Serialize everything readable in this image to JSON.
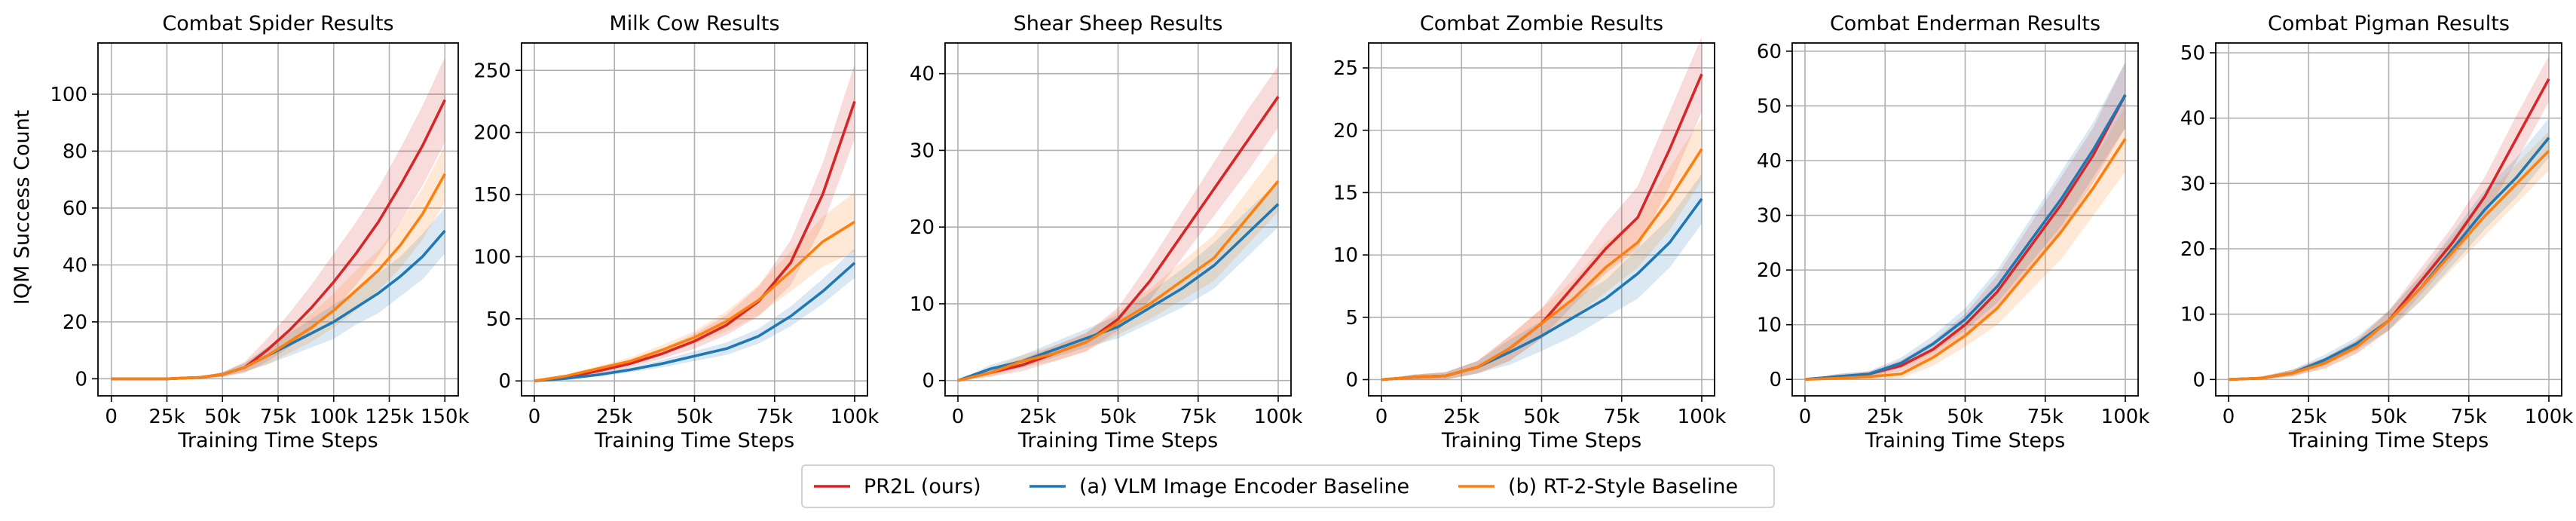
{
  "shared_ylabel": "IQM Success Count",
  "legend": {
    "placement": "bottom-center",
    "entries": [
      {
        "name": "PR2L (ours)",
        "color": "#d62728"
      },
      {
        "name": "(a) VLM Image Encoder Baseline",
        "color": "#1f77b4"
      },
      {
        "name": "(b) RT-2-Style Baseline",
        "color": "#ff7f0e"
      }
    ]
  },
  "chart_data": [
    {
      "type": "line",
      "title": "Combat Spider Results",
      "xlabel": "Training Time Steps",
      "ylabel": "IQM Success Count",
      "grid": true,
      "xlim": [
        -6000,
        156000
      ],
      "ylim": [
        -6,
        118
      ],
      "xticks": [
        0,
        25000,
        50000,
        75000,
        100000,
        125000,
        150000
      ],
      "xtick_labels": [
        "0",
        "25k",
        "50k",
        "75k",
        "100k",
        "125k",
        "150k"
      ],
      "yticks": [
        0,
        20,
        40,
        60,
        80,
        100
      ],
      "ytick_labels": [
        "0",
        "20",
        "40",
        "60",
        "80",
        "100"
      ],
      "series": [
        {
          "name": "PR2L (ours)",
          "color": "#d62728",
          "x": [
            0,
            25000,
            40000,
            50000,
            60000,
            70000,
            80000,
            90000,
            100000,
            110000,
            120000,
            130000,
            140000,
            150000
          ],
          "y": [
            0,
            0,
            0.5,
            1.5,
            4,
            10,
            17,
            25,
            34,
            44,
            55,
            68,
            82,
            98
          ],
          "band": [
            0,
            0,
            0.3,
            0.8,
            2,
            4,
            6,
            8,
            10,
            11,
            12,
            13,
            14,
            15
          ]
        },
        {
          "name": "(a) VLM Image Encoder Baseline",
          "color": "#1f77b4",
          "x": [
            0,
            25000,
            40000,
            50000,
            60000,
            70000,
            80000,
            90000,
            100000,
            110000,
            120000,
            130000,
            140000,
            150000
          ],
          "y": [
            0,
            0,
            0.5,
            1.5,
            4,
            8,
            12,
            16,
            20,
            25,
            30,
            36,
            43,
            52
          ],
          "band": [
            0,
            0,
            0.3,
            0.8,
            1.5,
            3,
            4,
            5,
            6,
            6,
            7,
            7,
            8,
            8
          ]
        },
        {
          "name": "(b) RT-2-Style Baseline",
          "color": "#ff7f0e",
          "x": [
            0,
            25000,
            40000,
            50000,
            60000,
            70000,
            80000,
            90000,
            100000,
            110000,
            120000,
            130000,
            140000,
            150000
          ],
          "y": [
            0,
            0,
            0.5,
            1.5,
            4,
            8,
            13,
            18,
            24,
            31,
            38,
            47,
            58,
            72
          ],
          "band": [
            0,
            0,
            0.3,
            0.8,
            1.5,
            3,
            4,
            5,
            6,
            7,
            7,
            8,
            9,
            10
          ]
        }
      ]
    },
    {
      "type": "line",
      "title": "Milk Cow Results",
      "xlabel": "Training Time Steps",
      "ylabel": "",
      "grid": true,
      "xlim": [
        -4000,
        104000
      ],
      "ylim": [
        -12,
        272
      ],
      "xticks": [
        0,
        25000,
        50000,
        75000,
        100000
      ],
      "xtick_labels": [
        "0",
        "25k",
        "50k",
        "75k",
        "100k"
      ],
      "yticks": [
        0,
        50,
        100,
        150,
        200,
        250
      ],
      "ytick_labels": [
        "0",
        "50",
        "100",
        "150",
        "200",
        "250"
      ],
      "series": [
        {
          "name": "PR2L (ours)",
          "color": "#d62728",
          "x": [
            0,
            10000,
            20000,
            30000,
            40000,
            50000,
            60000,
            70000,
            80000,
            90000,
            100000
          ],
          "y": [
            0,
            3,
            8,
            14,
            22,
            32,
            45,
            64,
            95,
            150,
            225
          ],
          "band": [
            0,
            1,
            2,
            3,
            4,
            6,
            8,
            12,
            18,
            25,
            30
          ]
        },
        {
          "name": "(a) VLM Image Encoder Baseline",
          "color": "#1f77b4",
          "x": [
            0,
            10000,
            20000,
            30000,
            40000,
            50000,
            60000,
            70000,
            80000,
            90000,
            100000
          ],
          "y": [
            0,
            2,
            5,
            9,
            14,
            20,
            26,
            36,
            52,
            72,
            95
          ],
          "band": [
            0,
            1,
            1.5,
            2,
            3,
            4,
            5,
            6,
            8,
            10,
            12
          ]
        },
        {
          "name": "(b) RT-2-Style Baseline",
          "color": "#ff7f0e",
          "x": [
            0,
            10000,
            20000,
            30000,
            40000,
            50000,
            60000,
            70000,
            80000,
            90000,
            100000
          ],
          "y": [
            0,
            4,
            10,
            16,
            25,
            35,
            48,
            65,
            88,
            112,
            128
          ],
          "band": [
            0,
            1,
            2,
            3,
            4,
            5,
            8,
            12,
            16,
            20,
            24
          ]
        }
      ]
    },
    {
      "type": "line",
      "title": "Shear Sheep Results",
      "xlabel": "Training Time Steps",
      "ylabel": "",
      "grid": true,
      "xlim": [
        -4000,
        104000
      ],
      "ylim": [
        -2,
        44
      ],
      "xticks": [
        0,
        25000,
        50000,
        75000,
        100000
      ],
      "xtick_labels": [
        "0",
        "25k",
        "50k",
        "75k",
        "100k"
      ],
      "yticks": [
        0,
        10,
        20,
        30,
        40
      ],
      "ytick_labels": [
        "0",
        "10",
        "20",
        "30",
        "40"
      ],
      "series": [
        {
          "name": "PR2L (ours)",
          "color": "#d62728",
          "x": [
            0,
            10000,
            20000,
            30000,
            40000,
            50000,
            60000,
            70000,
            80000,
            90000,
            100000
          ],
          "y": [
            0,
            1,
            2,
            3.5,
            5,
            8,
            13,
            19,
            25,
            31,
            37
          ],
          "band": [
            0,
            0.5,
            0.8,
            1,
            1.2,
            1.5,
            2.5,
            3,
            3.5,
            4,
            4
          ]
        },
        {
          "name": "(a) VLM Image Encoder Baseline",
          "color": "#1f77b4",
          "x": [
            0,
            10000,
            20000,
            30000,
            40000,
            50000,
            60000,
            70000,
            80000,
            90000,
            100000
          ],
          "y": [
            0,
            1.5,
            2.5,
            4,
            5.5,
            7,
            9.5,
            12,
            15,
            19,
            23
          ],
          "band": [
            0,
            0.5,
            0.8,
            1,
            1.2,
            1.5,
            2,
            2.5,
            3,
            3,
            3
          ]
        },
        {
          "name": "(b) RT-2-Style Baseline",
          "color": "#ff7f0e",
          "x": [
            0,
            10000,
            20000,
            30000,
            40000,
            50000,
            60000,
            70000,
            80000,
            90000,
            100000
          ],
          "y": [
            0,
            1,
            2.5,
            3.5,
            5,
            7.5,
            10,
            13,
            16,
            21,
            26
          ],
          "band": [
            0,
            0.5,
            0.8,
            1,
            1.2,
            1.5,
            2,
            2.5,
            3,
            3.5,
            4
          ]
        }
      ]
    },
    {
      "type": "line",
      "title": "Combat Zombie Results",
      "xlabel": "Training Time Steps",
      "ylabel": "",
      "grid": true,
      "xlim": [
        -4000,
        104000
      ],
      "ylim": [
        -1.3,
        27
      ],
      "xticks": [
        0,
        25000,
        50000,
        75000,
        100000
      ],
      "xtick_labels": [
        "0",
        "25k",
        "50k",
        "75k",
        "100k"
      ],
      "yticks": [
        0,
        5,
        10,
        15,
        20,
        25
      ],
      "ytick_labels": [
        "0",
        "5",
        "10",
        "15",
        "20",
        "25"
      ],
      "series": [
        {
          "name": "PR2L (ours)",
          "color": "#d62728",
          "x": [
            0,
            10000,
            20000,
            30000,
            40000,
            50000,
            60000,
            70000,
            80000,
            90000,
            100000
          ],
          "y": [
            0,
            0.2,
            0.3,
            1,
            2.5,
            4.5,
            7.5,
            10.5,
            13,
            18.5,
            24.5
          ],
          "band": [
            0,
            0.2,
            0.3,
            0.5,
            1,
            1.2,
            1.5,
            2,
            2.5,
            3,
            3
          ]
        },
        {
          "name": "(a) VLM Image Encoder Baseline",
          "color": "#1f77b4",
          "x": [
            0,
            10000,
            20000,
            30000,
            40000,
            50000,
            60000,
            70000,
            80000,
            90000,
            100000
          ],
          "y": [
            0,
            0.2,
            0.3,
            1,
            2.2,
            3.5,
            5,
            6.5,
            8.5,
            11,
            14.5
          ],
          "band": [
            0,
            0.2,
            0.3,
            0.5,
            1,
            1.2,
            1.5,
            1.5,
            2,
            2,
            2
          ]
        },
        {
          "name": "(b) RT-2-Style Baseline",
          "color": "#ff7f0e",
          "x": [
            0,
            10000,
            20000,
            30000,
            40000,
            50000,
            60000,
            70000,
            80000,
            90000,
            100000
          ],
          "y": [
            0,
            0.2,
            0.3,
            1,
            2.5,
            4.5,
            6.5,
            9,
            11,
            14.5,
            18.5
          ],
          "band": [
            0,
            0.2,
            0.3,
            0.5,
            1,
            1.2,
            1.5,
            2,
            2,
            2.5,
            2.5
          ]
        }
      ]
    },
    {
      "type": "line",
      "title": "Combat Enderman Results",
      "xlabel": "Training Time Steps",
      "ylabel": "",
      "grid": true,
      "xlim": [
        -4000,
        104000
      ],
      "ylim": [
        -3,
        61.5
      ],
      "xticks": [
        0,
        25000,
        50000,
        75000,
        100000
      ],
      "xtick_labels": [
        "0",
        "25k",
        "50k",
        "75k",
        "100k"
      ],
      "yticks": [
        0,
        10,
        20,
        30,
        40,
        50,
        60
      ],
      "ytick_labels": [
        "0",
        "10",
        "20",
        "30",
        "40",
        "50",
        "60"
      ],
      "series": [
        {
          "name": "PR2L (ours)",
          "color": "#d62728",
          "x": [
            0,
            10000,
            20000,
            30000,
            40000,
            50000,
            60000,
            70000,
            80000,
            90000,
            100000
          ],
          "y": [
            0,
            0.5,
            1,
            2.5,
            5.5,
            10,
            16,
            24,
            32,
            41,
            52
          ],
          "band": [
            0,
            0.5,
            0.5,
            1,
            1.5,
            2,
            3,
            4,
            5,
            5,
            6
          ]
        },
        {
          "name": "(a) VLM Image Encoder Baseline",
          "color": "#1f77b4",
          "x": [
            0,
            10000,
            20000,
            30000,
            40000,
            50000,
            60000,
            70000,
            80000,
            90000,
            100000
          ],
          "y": [
            0,
            0.5,
            1,
            3,
            6.5,
            11,
            17,
            25,
            33,
            42,
            52
          ],
          "band": [
            0,
            0.5,
            0.5,
            1,
            1.5,
            2,
            3,
            4,
            5,
            5,
            6
          ]
        },
        {
          "name": "(b) RT-2-Style Baseline",
          "color": "#ff7f0e",
          "x": [
            0,
            10000,
            20000,
            30000,
            40000,
            50000,
            60000,
            70000,
            80000,
            90000,
            100000
          ],
          "y": [
            0,
            0.2,
            0.5,
            1,
            4,
            8,
            13,
            20,
            27,
            35,
            44
          ],
          "band": [
            0,
            0.3,
            0.5,
            0.8,
            1.5,
            2,
            3,
            4,
            5,
            5,
            6
          ]
        }
      ]
    },
    {
      "type": "line",
      "title": "Combat Pigman Results",
      "xlabel": "Training Time Steps",
      "ylabel": "",
      "grid": true,
      "xlim": [
        -4000,
        104000
      ],
      "ylim": [
        -2.5,
        51.5
      ],
      "xticks": [
        0,
        25000,
        50000,
        75000,
        100000
      ],
      "xtick_labels": [
        "0",
        "25k",
        "50k",
        "75k",
        "100k"
      ],
      "yticks": [
        0,
        10,
        20,
        30,
        40,
        50
      ],
      "ytick_labels": [
        "0",
        "10",
        "20",
        "30",
        "40",
        "50"
      ],
      "series": [
        {
          "name": "PR2L (ours)",
          "color": "#d62728",
          "x": [
            0,
            10000,
            20000,
            30000,
            40000,
            50000,
            60000,
            70000,
            80000,
            90000,
            100000
          ],
          "y": [
            0,
            0.2,
            1,
            2.5,
            5,
            9,
            15,
            21,
            28,
            37,
            46
          ],
          "band": [
            0,
            0.2,
            0.5,
            0.8,
            1,
            1.5,
            2,
            2.5,
            3,
            3.5,
            3.5
          ]
        },
        {
          "name": "(a) VLM Image Encoder Baseline",
          "color": "#1f77b4",
          "x": [
            0,
            10000,
            20000,
            30000,
            40000,
            50000,
            60000,
            70000,
            80000,
            90000,
            100000
          ],
          "y": [
            0,
            0.2,
            1,
            3,
            5.5,
            9,
            14,
            20,
            26,
            31,
            37
          ],
          "band": [
            0,
            0.2,
            0.5,
            0.8,
            1,
            1.5,
            2,
            2.5,
            3,
            3,
            3
          ]
        },
        {
          "name": "(b) RT-2-Style Baseline",
          "color": "#ff7f0e",
          "x": [
            0,
            10000,
            20000,
            30000,
            40000,
            50000,
            60000,
            70000,
            80000,
            90000,
            100000
          ],
          "y": [
            0,
            0.2,
            1,
            2.5,
            5,
            9,
            14,
            19.5,
            25,
            30,
            35
          ],
          "band": [
            0,
            0.2,
            0.5,
            0.8,
            1,
            1.5,
            2,
            2.5,
            3,
            3,
            3
          ]
        }
      ]
    }
  ]
}
